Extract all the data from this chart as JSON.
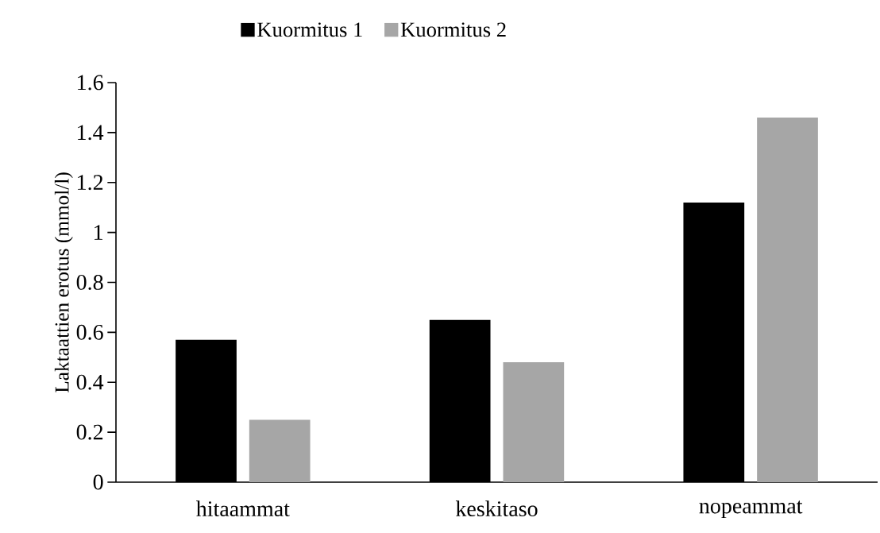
{
  "chart_data": {
    "type": "bar",
    "ylabel": "Laktaattien erotus (mmol/l)",
    "categories": [
      "hitaammat",
      "keskitaso",
      "nopeammat"
    ],
    "series": [
      {
        "name": "Kuormitus 1",
        "color": "#000000",
        "values": [
          0.57,
          0.65,
          1.12
        ]
      },
      {
        "name": "Kuormitus 2",
        "color": "#a6a6a6",
        "values": [
          0.25,
          0.48,
          1.46
        ]
      }
    ],
    "ylim": [
      0,
      1.6
    ],
    "yticks": [
      0,
      0.2,
      0.4,
      0.6,
      0.8,
      1,
      1.2,
      1.4,
      1.6
    ],
    "legend": "top"
  }
}
